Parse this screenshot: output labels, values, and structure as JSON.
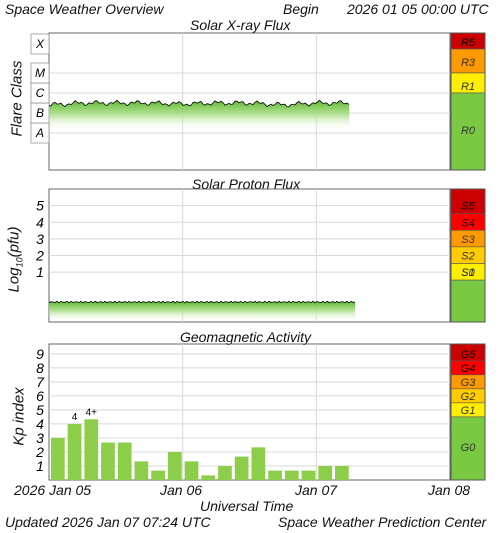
{
  "header": {
    "left": "Space Weather Overview",
    "begin_label": "Begin",
    "begin_value": "2026 01 05 00:00 UTC"
  },
  "footer": {
    "updated_label": "Updated",
    "updated_value": "2026 Jan 07 07:24 UTC",
    "source": "Space Weather Prediction Center"
  },
  "colors": {
    "grid": "#d8d8d8",
    "green_scale": "#7ac943",
    "bar_green": "#8ccd4a",
    "level_yellow": "#ffee00",
    "level_yellow_orange": "#ffcc00",
    "level_orange": "#ff9900",
    "level_red": "#ff0000",
    "level_darkred": "#cc0000",
    "flux_line": "#000000"
  },
  "chart_data": [
    {
      "type": "area",
      "title": "Solar X-ray Flux",
      "ylabel": "Flare Class",
      "y_categories": [
        "A",
        "B",
        "C",
        "M",
        "X"
      ],
      "x_axis": {
        "start": "2026-01-05",
        "end": "2026-01-08"
      },
      "series": [
        {
          "x": [
            "2026-01-05 00:00",
            "2026-01-05 06:00",
            "2026-01-05 12:00",
            "2026-01-05 18:00",
            "2026-01-06 00:00",
            "2026-01-06 06:00",
            "2026-01-06 12:00",
            "2026-01-06 18:00",
            "2026-01-07 00:00",
            "2026-01-07 06:00"
          ],
          "values": [
            "B8",
            "C1",
            "C1",
            "C1",
            "B9",
            "C1",
            "C1",
            "B8",
            "C1",
            "C1"
          ]
        }
      ],
      "scale_levels": [
        "R5",
        "R3",
        "R1",
        "R0"
      ]
    },
    {
      "type": "area",
      "title": "Solar Proton Flux",
      "ylabel_main": "Log",
      "ylabel_sub": "10",
      "ylabel_rest": "(pfu)",
      "y_ticks": [
        "1",
        "2",
        "3",
        "4",
        "5"
      ],
      "ylim": [
        -2,
        6
      ],
      "x_axis": {
        "start": "2026-01-05",
        "end": "2026-01-08"
      },
      "series": [
        {
          "x": [
            "2026-01-05 00:00",
            "2026-01-05 12:00",
            "2026-01-06 00:00",
            "2026-01-06 12:00",
            "2026-01-07 00:00",
            "2026-01-07 07:00"
          ],
          "values": [
            -0.8,
            -0.8,
            -0.8,
            -0.8,
            -0.8,
            -0.8
          ]
        }
      ],
      "scale_levels": [
        "S5",
        "S4",
        "S3",
        "S2",
        "S1",
        "S0"
      ]
    },
    {
      "type": "bar",
      "title": "Geomagnetic Activity",
      "ylabel": "Kp index",
      "y_ticks": [
        "1",
        "2",
        "3",
        "4",
        "5",
        "6",
        "7",
        "8",
        "9"
      ],
      "ylim": [
        0,
        9.7
      ],
      "x_axis": {
        "start": "2026-01-05",
        "end": "2026-01-08"
      },
      "x": [
        "2026-01-05 00:00",
        "2026-01-05 03:00",
        "2026-01-05 06:00",
        "2026-01-05 09:00",
        "2026-01-05 12:00",
        "2026-01-05 15:00",
        "2026-01-05 18:00",
        "2026-01-05 21:00",
        "2026-01-06 00:00",
        "2026-01-06 03:00",
        "2026-01-06 06:00",
        "2026-01-06 09:00",
        "2026-01-06 12:00",
        "2026-01-06 15:00",
        "2026-01-06 18:00",
        "2026-01-06 21:00",
        "2026-01-07 00:00",
        "2026-01-07 03:00"
      ],
      "values": [
        3.0,
        4.0,
        4.33,
        2.67,
        2.67,
        1.33,
        0.67,
        2.0,
        1.33,
        0.33,
        1.0,
        1.67,
        2.33,
        0.67,
        0.67,
        0.67,
        1.0,
        1.0
      ],
      "value_labels": [
        {
          "index": 1,
          "text": "4"
        },
        {
          "index": 2,
          "text": "4+"
        }
      ],
      "scale_levels": [
        "G5",
        "G4",
        "G3",
        "G2",
        "G1",
        "G0"
      ]
    }
  ],
  "axis": {
    "x_tick_labels": [
      "2026 Jan 05",
      "Jan 06",
      "Jan 07",
      "Jan 08"
    ],
    "x_title": "Universal Time"
  }
}
